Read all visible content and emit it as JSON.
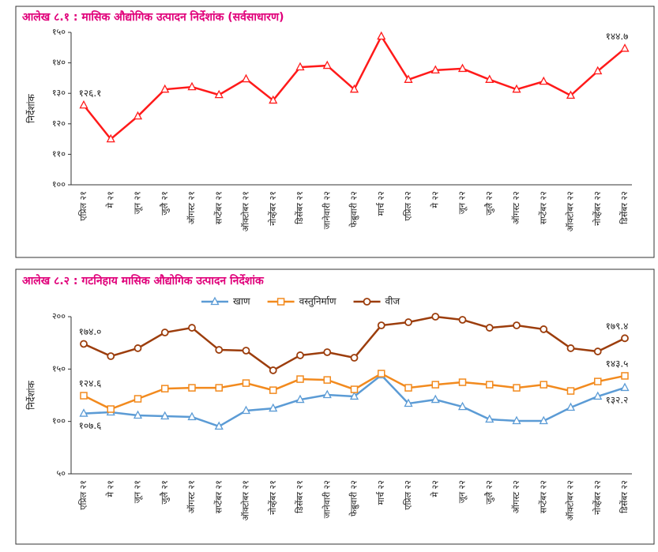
{
  "chart_data": [
    {
      "type": "line",
      "title": "आलेख ८.१ : मासिक औद्योगिक उत्पादन निर्देशांक (सर्वसाधारण)",
      "y_label": "निर्देशांक",
      "categories": [
        "एप्रिल २१",
        "मे २१",
        "जून २१",
        "जुलै २१",
        "ऑगस्ट २१",
        "सप्टेंबर २१",
        "ऑक्टोबर २१",
        "नोव्हेंबर २१",
        "डिसेंबर २१",
        "जानेवारी २२",
        "फेब्रुवारी २२",
        "मार्च २२",
        "एप्रिल २२",
        "मे २२",
        "जून २२",
        "जुलै २२",
        "ऑगस्ट २२",
        "सप्टेंबर २२",
        "ऑक्टोबर २२",
        "नोव्हेंबर २२",
        "डिसेंबर २२"
      ],
      "series": [
        {
          "color": "#ff1a1a",
          "marker": "triangle",
          "values": [
            126.1,
            115.0,
            122.5,
            131.3,
            132.1,
            129.5,
            134.7,
            127.7,
            138.6,
            139.1,
            131.3,
            148.7,
            134.5,
            137.6,
            138.1,
            134.5,
            131.3,
            133.9,
            129.3,
            137.3,
            144.7
          ],
          "value_labels": [
            "१२६.१",
            null,
            null,
            null,
            null,
            null,
            null,
            null,
            null,
            null,
            null,
            null,
            null,
            null,
            null,
            null,
            null,
            null,
            null,
            null,
            "१४४.७"
          ]
        }
      ],
      "ylim": [
        100,
        150
      ],
      "yticks": [
        {
          "value": 100,
          "label": "१००"
        },
        {
          "value": 110,
          "label": "११०"
        },
        {
          "value": 120,
          "label": "१२०"
        },
        {
          "value": 130,
          "label": "१३०"
        },
        {
          "value": 140,
          "label": "१४०"
        },
        {
          "value": 150,
          "label": "१५०"
        }
      ]
    },
    {
      "type": "line",
      "title": "आलेख ८.२ : गटनिहाय मासिक औद्योगिक उत्पादन निर्देशांक",
      "y_label": "निर्देशांक",
      "categories": [
        "एप्रिल २१",
        "मे २१",
        "जून २१",
        "जुलै २१",
        "ऑगस्ट २१",
        "सप्टेंबर २१",
        "ऑक्टोबर २१",
        "नोव्हेंबर २१",
        "डिसेंबर २१",
        "जानेवारी २२",
        "फेब्रुवारी २२",
        "मार्च २२",
        "एप्रिल २२",
        "मे २२",
        "जून २२",
        "जुलै २२",
        "ऑगस्ट २२",
        "सप्टेंबर २२",
        "ऑक्टोबर २२",
        "नोव्हेंबर २२",
        "डिसेंबर २२"
      ],
      "series": [
        {
          "name": "खाण",
          "color": "#5b9bd5",
          "marker": "triangle",
          "values": [
            107.6,
            108.8,
            105.8,
            105.0,
            104.3,
            95.3,
            110.3,
            112.5,
            120.8,
            125.4,
            123.9,
            144.2,
            117.1,
            120.8,
            114.0,
            102.0,
            100.5,
            100.5,
            113.3,
            123.9,
            132.2
          ],
          "value_labels": [
            "१०७.६",
            null,
            null,
            null,
            null,
            null,
            null,
            null,
            null,
            null,
            null,
            null,
            null,
            null,
            null,
            null,
            null,
            null,
            null,
            null,
            "१३२.२"
          ]
        },
        {
          "name": "वस्तुनिर्माण",
          "color": "#f28a1e",
          "marker": "square",
          "values": [
            124.6,
            111.8,
            121.6,
            131.3,
            132.1,
            132.1,
            136.6,
            129.8,
            140.4,
            139.6,
            130.6,
            145.7,
            132.1,
            135.1,
            137.4,
            135.1,
            132.1,
            135.1,
            129.1,
            138.1,
            143.5
          ],
          "value_labels": [
            "१२४.६",
            null,
            null,
            null,
            null,
            null,
            null,
            null,
            null,
            null,
            null,
            null,
            null,
            null,
            null,
            null,
            null,
            null,
            null,
            null,
            "१४३.५"
          ]
        },
        {
          "name": "वीज",
          "color": "#9c3d0c",
          "marker": "circle",
          "values": [
            174.0,
            162.3,
            169.9,
            184.9,
            189.4,
            168.3,
            167.6,
            148.8,
            163.1,
            166.1,
            160.8,
            191.7,
            194.7,
            200.0,
            197.0,
            189.4,
            191.7,
            188.0,
            169.9,
            166.8,
            179.4
          ],
          "value_labels": [
            "१७४.०",
            null,
            null,
            null,
            null,
            null,
            null,
            null,
            null,
            null,
            null,
            null,
            null,
            null,
            null,
            null,
            null,
            null,
            null,
            null,
            "१७९.४"
          ]
        }
      ],
      "ylim": [
        50,
        200
      ],
      "yticks": [
        {
          "value": 50,
          "label": "५०"
        },
        {
          "value": 100,
          "label": "१००"
        },
        {
          "value": 150,
          "label": "१५०"
        },
        {
          "value": 200,
          "label": "२००"
        }
      ],
      "legend": "top"
    }
  ]
}
